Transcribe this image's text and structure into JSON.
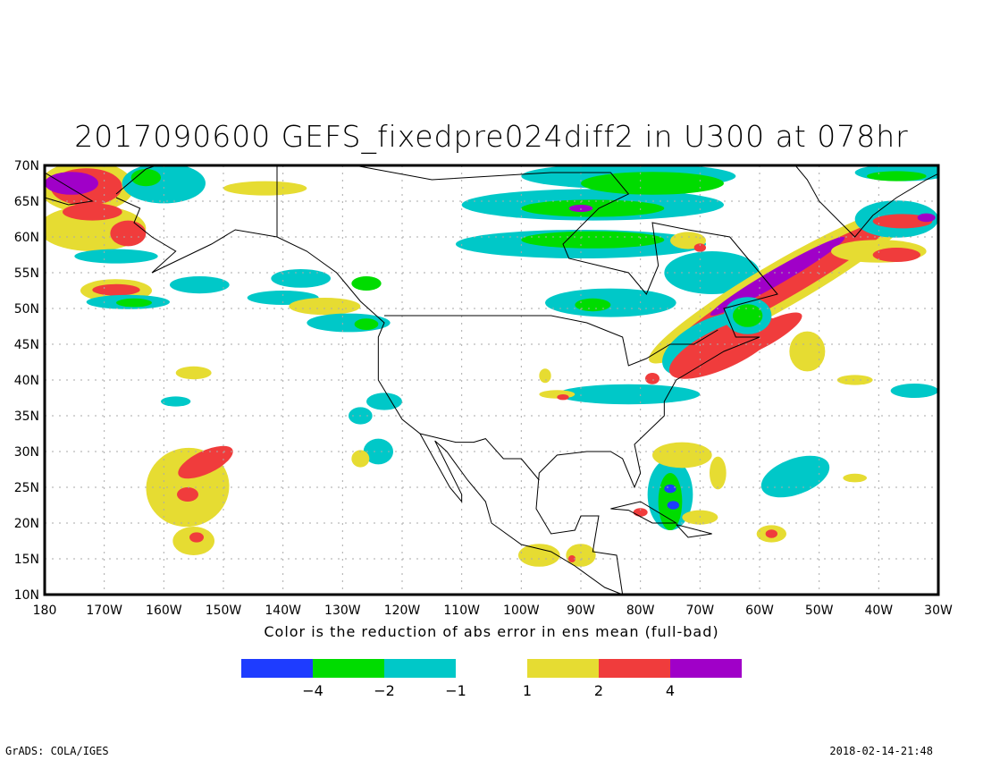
{
  "chart_data": {
    "type": "heatmap",
    "title": "2017090600 GEFS_fixedpre024diff2 in U300 at 078hr",
    "xlabel": "Color is the reduction of abs error in ens mean (full-bad)",
    "lon_range": [
      -180,
      -30
    ],
    "lat_range": [
      10,
      70
    ],
    "x_ticks": [
      "180",
      "170W",
      "160W",
      "150W",
      "140W",
      "130W",
      "120W",
      "110W",
      "100W",
      "90W",
      "80W",
      "70W",
      "60W",
      "50W",
      "40W",
      "30W"
    ],
    "y_ticks": [
      "10N",
      "15N",
      "20N",
      "25N",
      "30N",
      "35N",
      "40N",
      "45N",
      "50N",
      "55N",
      "60N",
      "65N",
      "70N"
    ],
    "grid": true,
    "legend": {
      "placement": "bottom",
      "levels": [
        -4,
        -2,
        -1,
        1,
        2,
        4
      ],
      "labels": [
        "-4",
        "-2",
        "-1",
        "1",
        "2",
        "4"
      ],
      "colors": {
        "-4": "#1e3cff",
        "-2": "#00dc00",
        "-1": "#00c8c8",
        "1": "#e6dc32",
        "2": "#f03c3c",
        "4": "#a000c8"
      }
    },
    "blobs_note": "each blob: [lon, lat, half-width deg lon, half-height deg lat, level, rotation deg]",
    "blobs": [
      [
        -173,
        67,
        8,
        3.6,
        1,
        0
      ],
      [
        -173,
        67,
        6,
        2.6,
        2,
        0
      ],
      [
        -175.5,
        67.5,
        4.5,
        1.6,
        4,
        0
      ],
      [
        -172,
        61.2,
        9,
        3.2,
        1,
        0
      ],
      [
        -172,
        63.5,
        5,
        1.2,
        2,
        0
      ],
      [
        -166,
        60.5,
        3,
        1.8,
        2,
        0
      ],
      [
        -168,
        57.3,
        7,
        1,
        -1,
        0
      ],
      [
        -168,
        52.5,
        6,
        1.6,
        1,
        0
      ],
      [
        -168,
        52.6,
        4,
        0.8,
        2,
        0
      ],
      [
        -166,
        50.9,
        7,
        1,
        -1,
        0
      ],
      [
        -165,
        50.8,
        3,
        0.6,
        -2,
        0
      ],
      [
        -160,
        67.5,
        7,
        2.8,
        -1,
        0
      ],
      [
        -163,
        68.3,
        2.5,
        1.2,
        -2,
        0
      ],
      [
        -143,
        66.8,
        7,
        1,
        1,
        0
      ],
      [
        -154,
        53.3,
        5,
        1.2,
        -1,
        0
      ],
      [
        -140,
        51.5,
        6,
        1,
        -1,
        0
      ],
      [
        -133,
        50.3,
        6,
        1.2,
        1,
        0
      ],
      [
        -129,
        48,
        7,
        1.3,
        -1,
        0
      ],
      [
        -126,
        47.8,
        2,
        0.8,
        -2,
        0
      ],
      [
        -137,
        54.2,
        5,
        1.3,
        -1,
        0
      ],
      [
        -126,
        53.5,
        2.5,
        1,
        -2,
        0
      ],
      [
        -155,
        41,
        3,
        0.9,
        1,
        0
      ],
      [
        -158,
        37,
        2.5,
        0.7,
        -1,
        0
      ],
      [
        -156,
        25,
        7,
        5.5,
        1,
        -15
      ],
      [
        -153,
        28.5,
        5,
        1.6,
        2,
        -25
      ],
      [
        -156,
        24,
        1.8,
        1,
        2,
        0
      ],
      [
        -155,
        17.5,
        3.5,
        2,
        1,
        0
      ],
      [
        -154.5,
        18,
        1.2,
        0.7,
        2,
        0
      ],
      [
        -88,
        64.5,
        22,
        2.2,
        -1,
        0
      ],
      [
        -88,
        64,
        12,
        1.2,
        -2,
        0
      ],
      [
        -90,
        64,
        2,
        0.5,
        4,
        0
      ],
      [
        -82,
        68.5,
        18,
        1.8,
        -1,
        0
      ],
      [
        -78,
        67.5,
        12,
        1.6,
        -2,
        0
      ],
      [
        -90,
        59,
        21,
        2,
        -1,
        0
      ],
      [
        -88,
        59.6,
        12,
        1.2,
        -2,
        0
      ],
      [
        -72,
        59.5,
        3,
        1.2,
        1,
        0
      ],
      [
        -70,
        58.5,
        1,
        0.6,
        2,
        0
      ],
      [
        -85,
        50.8,
        11,
        2,
        -1,
        0
      ],
      [
        -88,
        50.5,
        3,
        0.9,
        -2,
        0
      ],
      [
        -68,
        55,
        8,
        3,
        -1,
        0
      ],
      [
        -56,
        53.5,
        26,
        3.2,
        1,
        -30
      ],
      [
        -56,
        53.5,
        21,
        2.1,
        2,
        -30
      ],
      [
        -57,
        54.5,
        13,
        1.1,
        4,
        -30
      ],
      [
        -68,
        45,
        9,
        3.5,
        -1,
        -25
      ],
      [
        -66,
        44.5,
        10,
        2.8,
        2,
        -25
      ],
      [
        -60,
        46,
        8,
        1.6,
        2,
        -28
      ],
      [
        -62,
        49,
        4,
        2.6,
        -1,
        0
      ],
      [
        -62,
        49,
        2.5,
        1.6,
        -2,
        0
      ],
      [
        -52,
        44,
        3,
        2.8,
        1,
        0
      ],
      [
        -40,
        58,
        8,
        1.6,
        1,
        0
      ],
      [
        -37,
        57.5,
        4,
        1,
        2,
        0
      ],
      [
        -37,
        62.5,
        7,
        2.6,
        -1,
        0
      ],
      [
        -36,
        62.2,
        5,
        1,
        2,
        0
      ],
      [
        -32,
        62.7,
        1.5,
        0.6,
        4,
        0
      ],
      [
        -36,
        69,
        8,
        1.2,
        -1,
        0
      ],
      [
        -37,
        68.5,
        5,
        0.7,
        -2,
        0
      ],
      [
        -75,
        24,
        3.8,
        5,
        -1,
        0
      ],
      [
        -75,
        23,
        2,
        4,
        -2,
        0
      ],
      [
        -75,
        24.8,
        1,
        0.6,
        -4,
        0
      ],
      [
        -74.5,
        22.5,
        1,
        0.6,
        -4,
        0
      ],
      [
        -80,
        21.5,
        1.2,
        0.6,
        2,
        0
      ],
      [
        -70,
        20.8,
        3,
        1,
        1,
        0
      ],
      [
        -73,
        29.5,
        5,
        1.8,
        1,
        0
      ],
      [
        -67,
        27,
        1.4,
        2.3,
        1,
        0
      ],
      [
        -54,
        26.5,
        6,
        2.5,
        -1,
        -20
      ],
      [
        -44,
        26.3,
        2,
        0.6,
        1,
        0
      ],
      [
        -58,
        18.5,
        2.5,
        1.2,
        1,
        0
      ],
      [
        -58,
        18.5,
        1,
        0.6,
        2,
        0
      ],
      [
        -97,
        15.5,
        3.5,
        1.6,
        1,
        0
      ],
      [
        -90,
        15.5,
        2.5,
        1.6,
        1,
        0
      ],
      [
        -91.5,
        15,
        0.6,
        0.5,
        2,
        0
      ],
      [
        -123,
        37,
        3,
        1.2,
        -1,
        0
      ],
      [
        -127,
        35,
        2,
        1.2,
        -1,
        0
      ],
      [
        -124,
        30,
        2.5,
        1.8,
        -1,
        0
      ],
      [
        -127,
        29,
        1.5,
        1.2,
        1,
        0
      ],
      [
        -82,
        38,
        12,
        1.4,
        -1,
        0
      ],
      [
        -94,
        38,
        3,
        0.6,
        1,
        0
      ],
      [
        -93,
        37.6,
        1,
        0.4,
        2,
        0
      ],
      [
        -34,
        38.5,
        4,
        1,
        -1,
        0
      ],
      [
        -44,
        40,
        3,
        0.7,
        1,
        0
      ],
      [
        -96,
        40.6,
        1,
        1,
        1,
        0
      ],
      [
        -78,
        40.2,
        1.2,
        0.8,
        2,
        0
      ]
    ],
    "coastline_note": "approximate outlines as [lon, lat] vertices",
    "coastlines": [
      [
        [
          -168,
          66
        ],
        [
          -163,
          69.5
        ],
        [
          -156,
          71.5
        ],
        [
          -141,
          70
        ],
        [
          -128,
          70
        ],
        [
          -115,
          68
        ],
        [
          -95,
          69
        ],
        [
          -85,
          69
        ],
        [
          -82,
          66
        ],
        [
          -87,
          64
        ],
        [
          -93,
          59
        ],
        [
          -92,
          57
        ],
        [
          -82,
          55
        ],
        [
          -79,
          52
        ],
        [
          -77,
          56
        ],
        [
          -78,
          62
        ],
        [
          -72,
          61
        ],
        [
          -65,
          60
        ],
        [
          -61,
          56
        ],
        [
          -57,
          52
        ],
        [
          -66,
          50
        ],
        [
          -64,
          46
        ],
        [
          -60,
          46
        ],
        [
          -66,
          44
        ],
        [
          -70,
          42
        ],
        [
          -74,
          40
        ],
        [
          -76,
          37
        ],
        [
          -76,
          35
        ],
        [
          -81,
          31
        ],
        [
          -80,
          27
        ],
        [
          -81,
          25
        ],
        [
          -83,
          29
        ],
        [
          -85,
          30
        ],
        [
          -89,
          30
        ],
        [
          -94,
          29.5
        ],
        [
          -97,
          27
        ],
        [
          -97.5,
          22
        ],
        [
          -95,
          18.5
        ],
        [
          -91,
          19
        ],
        [
          -90,
          21
        ],
        [
          -87,
          21
        ],
        [
          -88,
          16
        ],
        [
          -84,
          15.5
        ],
        [
          -83,
          10
        ],
        [
          -86,
          11
        ],
        [
          -91,
          14
        ],
        [
          -95,
          16
        ],
        [
          -100,
          17
        ],
        [
          -105,
          20
        ],
        [
          -106,
          23
        ],
        [
          -109,
          26
        ],
        [
          -112.5,
          30
        ],
        [
          -114.5,
          31.5
        ],
        [
          -113,
          29
        ],
        [
          -110,
          24
        ],
        [
          -110,
          23
        ],
        [
          -112,
          25
        ],
        [
          -114,
          28
        ],
        [
          -117,
          32.5
        ],
        [
          -120,
          34.5
        ],
        [
          -124,
          40
        ],
        [
          -124,
          46
        ],
        [
          -123,
          48
        ],
        [
          -127,
          51
        ],
        [
          -131,
          55
        ],
        [
          -136,
          58
        ],
        [
          -141,
          60
        ],
        [
          -148,
          61
        ],
        [
          -152,
          59
        ],
        [
          -157,
          57
        ],
        [
          -162,
          55
        ],
        [
          -158,
          58
        ],
        [
          -162,
          60
        ],
        [
          -165,
          62
        ],
        [
          -164,
          64
        ],
        [
          -168,
          65.5
        ]
      ],
      [
        [
          -60,
          72
        ],
        [
          -54,
          70
        ],
        [
          -52,
          68
        ],
        [
          -50,
          65
        ],
        [
          -44,
          60
        ],
        [
          -41,
          63
        ],
        [
          -37,
          65.5
        ],
        [
          -32,
          68
        ],
        [
          -25,
          71
        ]
      ],
      [
        [
          -180,
          69
        ],
        [
          -176,
          67
        ],
        [
          -172,
          65
        ],
        [
          -176,
          64.5
        ],
        [
          -180,
          65.5
        ]
      ],
      [
        [
          -85,
          22
        ],
        [
          -80,
          23
        ],
        [
          -74,
          20
        ],
        [
          -78,
          20
        ],
        [
          -82,
          21.8
        ],
        [
          -85,
          22
        ]
      ],
      [
        [
          -74,
          19.8
        ],
        [
          -68,
          18.5
        ],
        [
          -72,
          18
        ],
        [
          -74,
          19.8
        ]
      ],
      [
        [
          -123,
          49
        ],
        [
          -95,
          49
        ],
        [
          -89,
          48
        ],
        [
          -83,
          46
        ],
        [
          -82,
          42
        ],
        [
          -79,
          43
        ],
        [
          -75,
          45
        ],
        [
          -71,
          45
        ],
        [
          -67,
          47
        ]
      ],
      [
        [
          -117,
          32.5
        ],
        [
          -111,
          31.3
        ],
        [
          -108,
          31.3
        ],
        [
          -106,
          31.8
        ],
        [
          -103,
          29
        ],
        [
          -100,
          29
        ],
        [
          -97,
          26
        ]
      ],
      [
        [
          -141,
          60
        ],
        [
          -141,
          70
        ]
      ]
    ]
  },
  "footer": {
    "left": "GrADS: COLA/IGES",
    "right": "2018-02-14-21:48"
  }
}
